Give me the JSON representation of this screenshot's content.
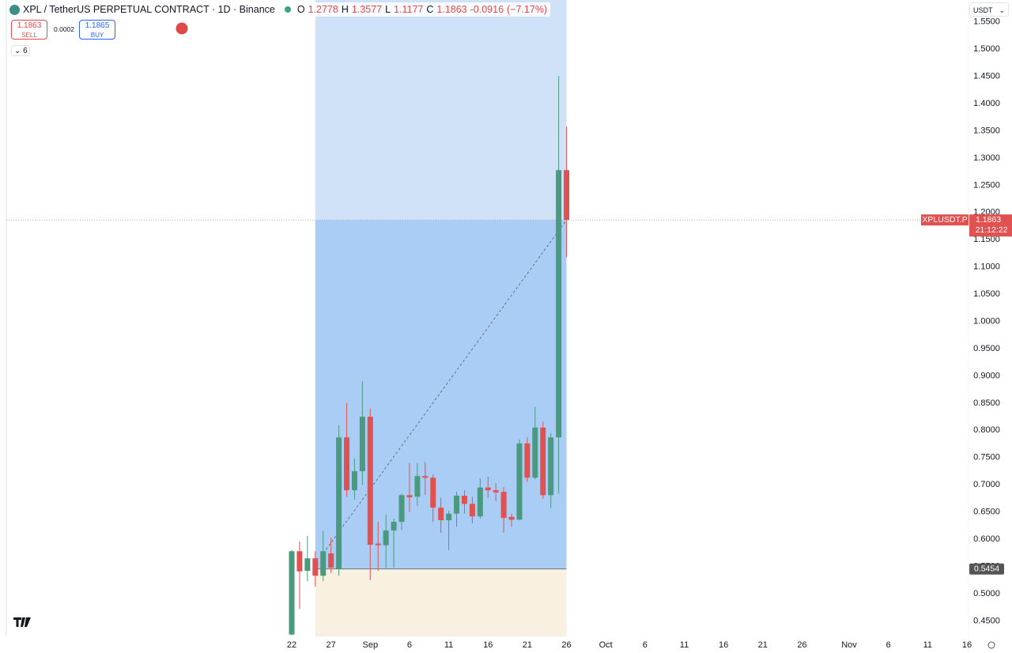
{
  "header": {
    "title": "XPL / TetherUS PERPETUAL CONTRACT · 1D · Binance",
    "ohlc_labels": [
      "O",
      "H",
      "L",
      "C"
    ],
    "change": -0.0916,
    "change_percent": {
      "value": -7.17,
      "label": "(−7.17%)"
    }
  },
  "trade_panel": {
    "sell_price": 1.1863,
    "sell": "SELL",
    "spread": 0.0002,
    "buy_price": 1.1865,
    "buy": "BUY",
    "indicators": "6"
  },
  "currency": "USDT",
  "chart_data": {
    "type": "candlestick",
    "categories": [
      "22",
      null,
      null,
      null,
      null,
      "27",
      null,
      null,
      null,
      null,
      "Sep",
      null,
      null,
      null,
      null,
      "6",
      null,
      null,
      null,
      null,
      "11",
      null,
      null,
      null,
      null,
      "16",
      null,
      null,
      null,
      null,
      "21",
      null,
      null,
      null,
      null,
      "26",
      null,
      null,
      null,
      null,
      "Oct",
      null,
      null,
      null,
      null,
      "6",
      null,
      null,
      null,
      null,
      "11",
      null,
      null,
      null,
      null,
      "16",
      null,
      null,
      null,
      null,
      "21",
      null,
      null,
      null,
      null,
      "26",
      null,
      null,
      null,
      null,
      null,
      "Nov",
      null,
      null,
      null,
      null,
      "6",
      null,
      null,
      null,
      null,
      "11",
      null,
      null,
      null,
      null,
      "16"
    ],
    "open": [
      0.425,
      0.578,
      0.542,
      0.565,
      0.533,
      0.574,
      0.545,
      0.787,
      0.69,
      0.725,
      0.825,
      0.592,
      0.589,
      0.616,
      0.632,
      0.681,
      0.678,
      0.716,
      0.713,
      0.658,
      0.635,
      0.647,
      0.68,
      0.665,
      0.642,
      0.695,
      0.69,
      0.687,
      0.641,
      0.636,
      0.776,
      0.713,
      0.805,
      0.681,
      0.787,
      1.2778,
      null,
      null,
      null,
      null,
      null,
      null,
      null,
      null,
      null,
      null,
      null,
      null,
      null,
      null,
      null,
      null,
      null,
      null,
      null,
      null,
      null,
      null,
      null,
      null,
      null,
      null,
      null,
      null,
      null,
      null,
      null,
      null,
      null,
      null,
      null,
      null,
      null,
      null,
      null,
      null,
      null,
      null,
      null,
      null,
      null,
      null,
      null,
      null,
      null,
      null,
      null
    ],
    "high": [
      0.58,
      0.596,
      0.606,
      0.578,
      0.615,
      0.603,
      0.81,
      0.85,
      0.748,
      0.89,
      0.84,
      0.632,
      0.645,
      0.638,
      0.684,
      0.74,
      0.74,
      0.742,
      0.719,
      0.676,
      0.652,
      0.687,
      0.69,
      0.678,
      0.712,
      0.715,
      0.703,
      0.696,
      0.647,
      0.783,
      0.787,
      0.843,
      0.816,
      0.795,
      1.451,
      1.3577,
      null,
      null,
      null,
      null,
      null,
      null,
      null,
      null,
      null,
      null,
      null,
      null,
      null,
      null,
      null,
      null,
      null,
      null,
      null,
      null,
      null,
      null,
      null,
      null,
      null,
      null,
      null,
      null,
      null,
      null,
      null,
      null,
      null,
      null,
      null,
      null,
      null,
      null,
      null,
      null,
      null,
      null,
      null,
      null,
      null,
      null,
      null,
      null,
      null,
      null,
      null
    ],
    "low": [
      0.424,
      0.472,
      0.523,
      0.513,
      0.523,
      0.538,
      0.533,
      0.678,
      0.673,
      0.7,
      0.525,
      0.542,
      0.545,
      0.548,
      0.617,
      0.65,
      0.661,
      0.681,
      0.632,
      0.612,
      0.58,
      0.623,
      0.647,
      0.629,
      0.638,
      0.676,
      0.67,
      0.612,
      0.623,
      0.635,
      0.705,
      0.71,
      0.675,
      0.657,
      0.684,
      1.1177,
      null,
      null,
      null,
      null,
      null,
      null,
      null,
      null,
      null,
      null,
      null,
      null,
      null,
      null,
      null,
      null,
      null,
      null,
      null,
      null,
      null,
      null,
      null,
      null,
      null,
      null,
      null,
      null,
      null,
      null,
      null,
      null,
      null,
      null,
      null,
      null,
      null,
      null,
      null,
      null,
      null,
      null,
      null,
      null,
      null,
      null,
      null,
      null,
      null,
      null,
      null
    ],
    "close": [
      0.578,
      0.541,
      0.565,
      0.533,
      0.578,
      0.548,
      0.787,
      0.69,
      0.725,
      0.825,
      0.59,
      0.589,
      0.616,
      0.632,
      0.681,
      0.677,
      0.716,
      0.713,
      0.658,
      0.635,
      0.647,
      0.68,
      0.665,
      0.642,
      0.695,
      0.69,
      0.686,
      0.639,
      0.636,
      0.776,
      0.713,
      0.805,
      0.681,
      0.787,
      1.2778,
      1.1863,
      null,
      null,
      null,
      null,
      null,
      null,
      null,
      null,
      null,
      null,
      null,
      null,
      null,
      null,
      null,
      null,
      null,
      null,
      null,
      null,
      null,
      null,
      null,
      null,
      null,
      null,
      null,
      null,
      null,
      null,
      null,
      null,
      null,
      null,
      null,
      null,
      null,
      null,
      null,
      null,
      null,
      null,
      null,
      null,
      null,
      null,
      null,
      null,
      null,
      null,
      null
    ],
    "up_color": "#4a9a80",
    "down_color": "#e05252",
    "ylim": [
      0.4216,
      1.5902
    ],
    "yticks": [
      {
        "value": 0.45,
        "label": "0.4500"
      },
      {
        "value": 0.5,
        "label": "0.5000"
      },
      {
        "value": 0.55,
        "label": "0.5500"
      },
      {
        "value": 0.6,
        "label": "0.6000"
      },
      {
        "value": 0.65,
        "label": "0.6500"
      },
      {
        "value": 0.7,
        "label": "0.7000"
      },
      {
        "value": 0.75,
        "label": "0.7500"
      },
      {
        "value": 0.8,
        "label": "0.8000"
      },
      {
        "value": 0.85,
        "label": "0.8500"
      },
      {
        "value": 0.9,
        "label": "0.9000"
      },
      {
        "value": 0.95,
        "label": "0.9500"
      },
      {
        "value": 1,
        "label": "1.0000"
      },
      {
        "value": 1.05,
        "label": "1.0500"
      },
      {
        "value": 1.1,
        "label": "1.1000"
      },
      {
        "value": 1.15,
        "label": "1.1500"
      },
      {
        "value": 1.2,
        "label": "1.2000"
      },
      {
        "value": 1.25,
        "label": "1.2500"
      },
      {
        "value": 1.3,
        "label": "1.3000"
      },
      {
        "value": 1.35,
        "label": "1.3500"
      },
      {
        "value": 1.4,
        "label": "1.4000"
      },
      {
        "value": 1.45,
        "label": "1.4500"
      },
      {
        "value": 1.5,
        "label": "1.5000"
      },
      {
        "value": 1.55,
        "label": "1.5500"
      }
    ],
    "grid": false,
    "symbol_label": "XPLUSDT.P",
    "countdown": "21:12:22",
    "position": {
      "entry": 0.5454
    }
  }
}
